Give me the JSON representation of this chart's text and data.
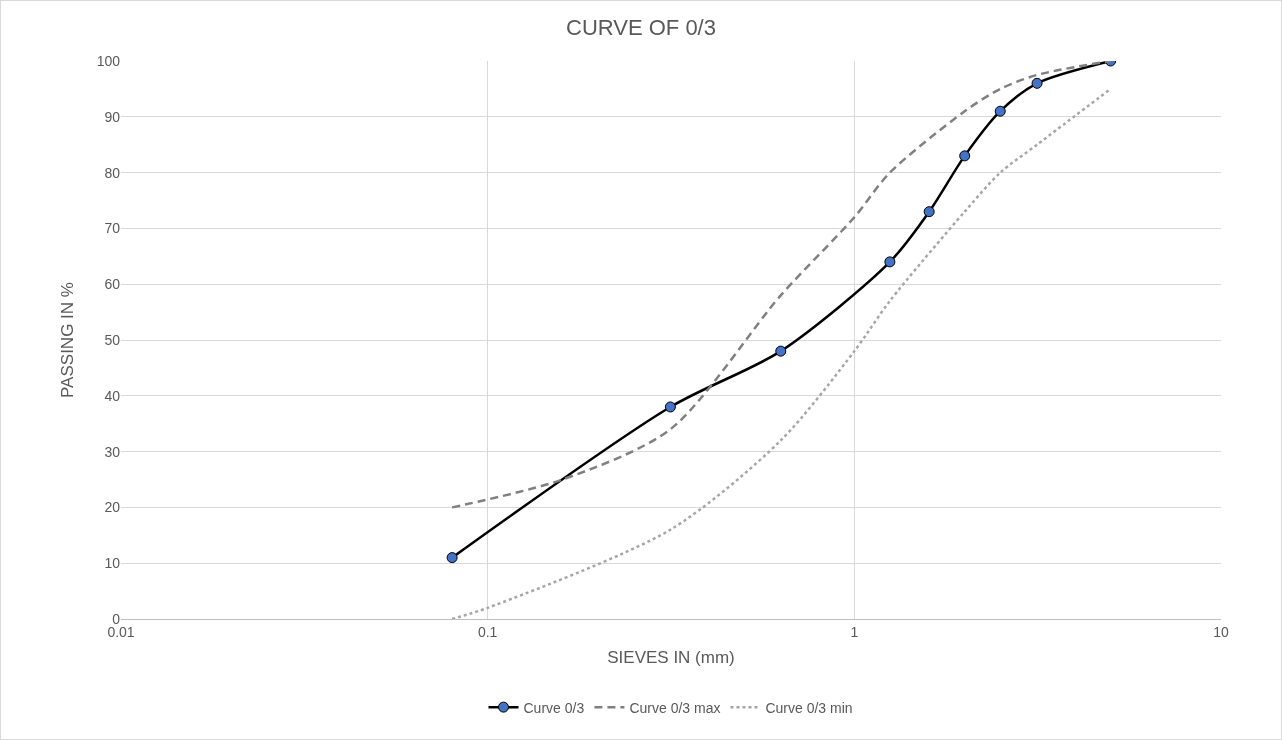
{
  "chart_data": {
    "type": "line",
    "title": "CURVE OF 0/3",
    "xlabel": "SIEVES IN (mm)",
    "ylabel": "PASSING IN %",
    "log": "x",
    "grid": true,
    "legend": "bottom",
    "xlim": [
      0.01,
      10
    ],
    "xticks": [
      0.01,
      0.1,
      1,
      10
    ],
    "ylim": [
      0,
      100
    ],
    "yticks": [
      0,
      10,
      20,
      30,
      40,
      50,
      60,
      70,
      80,
      90,
      100
    ],
    "series": [
      {
        "name": "Curve 0/3",
        "color": "#000000",
        "marker": "circle",
        "line_style": "solid",
        "x": [
          0.08,
          0.315,
          0.63,
          1.25,
          1.6,
          2,
          2.5,
          3.15,
          5
        ],
        "values": [
          11,
          38,
          48,
          64,
          73,
          83,
          91,
          96,
          100
        ]
      },
      {
        "name": "Curve 0/3 max",
        "color": "#808080",
        "marker": "none",
        "line_style": "dashed",
        "x": [
          0.08,
          0.16,
          0.315,
          0.63,
          1,
          1.25,
          2,
          2.5,
          3.15,
          5
        ],
        "values": [
          20,
          25,
          34,
          58,
          72,
          80,
          91,
          95,
          97.5,
          100
        ]
      },
      {
        "name": "Curve 0/3 min",
        "color": "#a6a6a6",
        "marker": "none",
        "line_style": "dotted",
        "x": [
          0.08,
          0.1,
          0.315,
          0.63,
          1,
          1.25,
          2,
          2.5,
          3.15,
          5
        ],
        "values": [
          0,
          2,
          16,
          32,
          48,
          57,
          73,
          80,
          85,
          95
        ]
      }
    ]
  }
}
